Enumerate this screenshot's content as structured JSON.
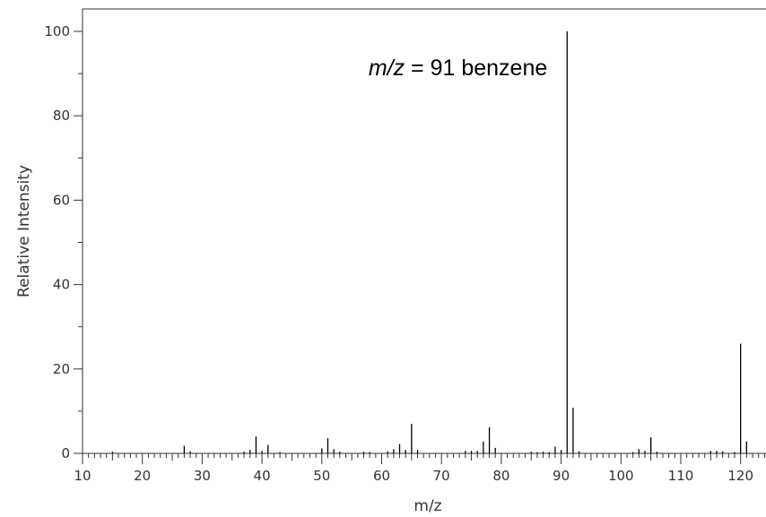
{
  "chart_data": {
    "type": "bar",
    "xlabel": "m/z",
    "ylabel": "Relative Intensity",
    "annotation": {
      "italic_part": "m/z",
      "rest": " = 91  benzene",
      "x_data": 91
    },
    "xlim": [
      10,
      125
    ],
    "ylim": [
      0,
      105
    ],
    "x_ticks": [
      10,
      20,
      30,
      40,
      50,
      60,
      70,
      80,
      90,
      100,
      110,
      120
    ],
    "y_ticks": [
      0,
      20,
      40,
      60,
      80,
      100
    ],
    "grid": false,
    "x": [
      15,
      27,
      28,
      37,
      38,
      39,
      40,
      41,
      43,
      50,
      51,
      52,
      53,
      57,
      58,
      61,
      62,
      63,
      64,
      65,
      66,
      74,
      75,
      76,
      77,
      78,
      79,
      85,
      86,
      87,
      88,
      89,
      90,
      91,
      92,
      93,
      102,
      103,
      104,
      105,
      106,
      115,
      116,
      117,
      119,
      120,
      121
    ],
    "values": [
      0.4,
      1.8,
      0.5,
      0.4,
      0.8,
      4.0,
      0.6,
      2.0,
      0.3,
      1.2,
      3.6,
      1.0,
      0.4,
      0.4,
      0.3,
      0.5,
      1.0,
      2.2,
      0.8,
      7.0,
      0.8,
      0.6,
      0.6,
      0.6,
      2.8,
      6.2,
      1.3,
      0.4,
      0.3,
      0.4,
      0.3,
      1.6,
      0.8,
      100.0,
      10.8,
      0.5,
      0.3,
      1.0,
      0.6,
      3.8,
      0.4,
      0.6,
      0.6,
      0.5,
      0.3,
      26.0,
      2.8
    ]
  }
}
